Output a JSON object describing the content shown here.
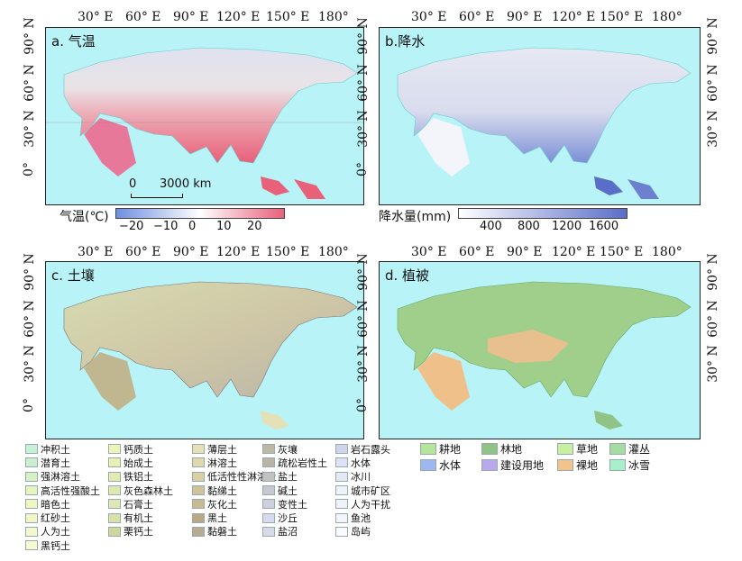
{
  "axes": {
    "x_ticks": [
      "30° E",
      "60° E",
      "90° E",
      "120° E",
      "150° E",
      "180°"
    ],
    "y_ticks": [
      "90° N",
      "60° N",
      "30° N",
      "0°"
    ]
  },
  "panels": {
    "a": {
      "label": "a. 气温",
      "colorbar_title": "气温(℃)",
      "colorbar_ticks": [
        "−20",
        "−10",
        "0",
        "10",
        "20"
      ],
      "colors": [
        "#6f8fe0",
        "#ffffff",
        "#e8607a"
      ]
    },
    "b": {
      "label": "b.降水",
      "colorbar_title": "降水量(mm)",
      "colorbar_ticks": [
        "400",
        "800",
        "1200",
        "1600"
      ],
      "colors": [
        "#ffffff",
        "#5a6ec8"
      ]
    },
    "c": {
      "label": "c. 土壤"
    },
    "d": {
      "label": "d. 植被"
    }
  },
  "scalebar": {
    "zero": "0",
    "value": "3000 km"
  },
  "soil_legend": {
    "col1": [
      "冲积土",
      "潜育土",
      "强淋溶土",
      "高活性强酸土",
      "暗色土",
      "红砂土",
      "人为土",
      "黑钙土"
    ],
    "col2": [
      "钙质土",
      "始成土",
      "铁铝土",
      "灰色森林土",
      "石膏土",
      "有机土",
      "栗钙土"
    ],
    "col3": [
      "薄层土",
      "淋溶土",
      "低活性性淋溶土",
      "黏绨土",
      "灰化土",
      "黑土",
      "黏磐土"
    ],
    "col4": [
      "灰壤",
      "疏松岩性土",
      "盐土",
      "碱土",
      "变性土",
      "沙丘",
      "盐沼"
    ],
    "col5": [
      "岩石露头",
      "水体",
      "冰川",
      "城市矿区",
      "人为干扰",
      "鱼池",
      "岛屿"
    ],
    "colors": {
      "col1": [
        "#c6f0d8",
        "#cdeecd",
        "#d8f1c4",
        "#e6f4c0",
        "#eef6c2",
        "#f2f5c6",
        "#f5f7cc",
        "#f7f9d0"
      ],
      "col2": [
        "#eef3b8",
        "#eaf0b4",
        "#e4eab2",
        "#dfe8b0",
        "#e2e6b6",
        "#d9e0a8",
        "#cfd79c"
      ],
      "col3": [
        "#e6e0b8",
        "#e0d8b0",
        "#d9d0a6",
        "#cfc39c",
        "#c8ba92",
        "#b8a886",
        "#b7ab92"
      ],
      "col4": [
        "#bdb7a6",
        "#b8b4aa",
        "#c2c2c2",
        "#c8c8d2",
        "#cfd0de",
        "#d8daf0",
        "#d8daea"
      ],
      "col5": [
        "#d0d4ee",
        "#dfe2f6",
        "#e6e8f6",
        "#eef0fa",
        "#f0f2fa",
        "#f4f5fc",
        "#fafbff"
      ]
    }
  },
  "veg_legend": {
    "items": [
      {
        "label": "耕地",
        "color": "#b5e59a"
      },
      {
        "label": "林地",
        "color": "#8fc486"
      },
      {
        "label": "草地",
        "color": "#c8f0a2"
      },
      {
        "label": "灌丛",
        "color": "#a7dca0"
      },
      {
        "label": "水体",
        "color": "#9cb7f2"
      },
      {
        "label": "建设用地",
        "color": "#b9a8ee"
      },
      {
        "label": "裸地",
        "color": "#f2c48c"
      },
      {
        "label": "冰雪",
        "color": "#a8f0cc"
      }
    ]
  }
}
